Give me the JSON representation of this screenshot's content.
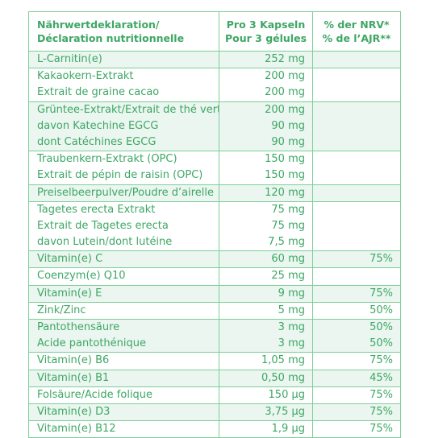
{
  "header": {
    "col1": [
      "Nährwertdeklaration/",
      "Déclaration nutritionnelle"
    ],
    "col2": [
      "Pro 3 Kapseln",
      "Pour 3 gélules"
    ],
    "col3": [
      "% der NRV*",
      "% de l’AJR**"
    ]
  },
  "rows": [
    {
      "shade": true,
      "names": [
        "L-Carnitin(e)"
      ],
      "amounts": [
        "252 mg"
      ],
      "nrv": [
        ""
      ]
    },
    {
      "shade": false,
      "names": [
        "Kakaokern-Extrakt",
        "Extrait de graine cacao"
      ],
      "amounts": [
        "200 mg",
        "200 mg"
      ],
      "nrv": [
        "",
        ""
      ]
    },
    {
      "shade": true,
      "names": [
        "Grüntee-Extrakt/Extrait de thé vert",
        "davon Katechine EGCG",
        "dont Catéchines EGCG"
      ],
      "amounts": [
        "200 mg",
        "90 mg",
        "90 mg"
      ],
      "nrv": [
        "",
        "",
        ""
      ]
    },
    {
      "shade": false,
      "names": [
        "Traubenkern-Extrakt (OPC)",
        "Extrait de pépin de raisin (OPC)"
      ],
      "amounts": [
        "150 mg",
        "150 mg"
      ],
      "nrv": [
        "",
        ""
      ]
    },
    {
      "shade": true,
      "names": [
        "Preiselbeerpulver/Poudre d’airelle"
      ],
      "amounts": [
        "120 mg"
      ],
      "nrv": [
        ""
      ]
    },
    {
      "shade": false,
      "names": [
        "Tagetes erecta Extrakt",
        "Extrait de Tagetes erecta",
        "davon Lutein/dont lutéine"
      ],
      "amounts": [
        "75 mg",
        "75 mg",
        "7,5 mg"
      ],
      "nrv": [
        "",
        "",
        ""
      ]
    },
    {
      "shade": true,
      "names": [
        "Vitamin(e) C"
      ],
      "amounts": [
        "60 mg"
      ],
      "nrv": [
        "75%"
      ]
    },
    {
      "shade": false,
      "names": [
        "Coenzym(e) Q10"
      ],
      "amounts": [
        "25 mg"
      ],
      "nrv": [
        ""
      ]
    },
    {
      "shade": true,
      "names": [
        "Vitamin(e) E"
      ],
      "amounts": [
        "9 mg"
      ],
      "nrv": [
        "75%"
      ]
    },
    {
      "shade": false,
      "names": [
        "Zink/Zinc"
      ],
      "amounts": [
        "5 mg"
      ],
      "nrv": [
        "50%"
      ]
    },
    {
      "shade": true,
      "names": [
        "Pantothensäure",
        "Acide pantothénique"
      ],
      "amounts": [
        "3 mg",
        "3 mg"
      ],
      "nrv": [
        "50%",
        "50%"
      ]
    },
    {
      "shade": false,
      "names": [
        "Vitamin(e) B6"
      ],
      "amounts": [
        "1,05 mg"
      ],
      "nrv": [
        "75%"
      ]
    },
    {
      "shade": true,
      "names": [
        "Vitamin(e) B1"
      ],
      "amounts": [
        "0,50 mg"
      ],
      "nrv": [
        "45%"
      ]
    },
    {
      "shade": false,
      "names": [
        "Folsäure/Acide folique"
      ],
      "amounts": [
        "150 µg"
      ],
      "nrv": [
        "75%"
      ]
    },
    {
      "shade": true,
      "names": [
        "Vitamin(e) D3"
      ],
      "amounts": [
        "3,75 µg"
      ],
      "nrv": [
        "75%"
      ]
    },
    {
      "shade": false,
      "names": [
        "Vitamin(e) B12"
      ],
      "amounts": [
        "1,9 µg"
      ],
      "nrv": [
        "75%"
      ]
    }
  ]
}
